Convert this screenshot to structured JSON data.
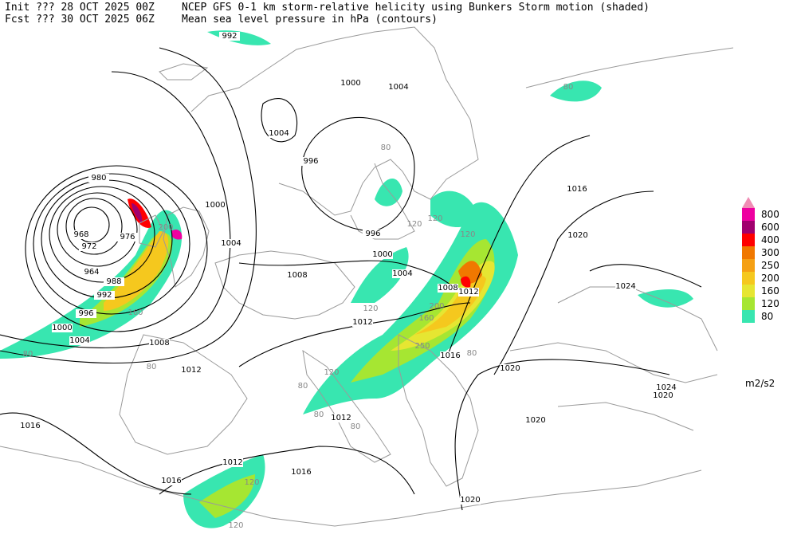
{
  "header": {
    "init": "Init  ??? 28 OCT 2025 00Z",
    "fcst": "Fcst ??? 30 OCT 2025 06Z",
    "title": "NCEP GFS 0-1 km storm-relative helicity using Bunkers Storm motion (shaded)",
    "subtitle": "Mean sea level pressure in hPa (contours)"
  },
  "legend": {
    "levels": [
      80,
      120,
      160,
      200,
      250,
      300,
      400,
      600,
      800
    ],
    "colors": [
      "#38e6b0",
      "#a6e632",
      "#e6e632",
      "#f5c81e",
      "#f5a014",
      "#f07800",
      "#ff0000",
      "#a0006e",
      "#ee00a0"
    ],
    "extend_color": "#f08cb4",
    "unit": "m2/s2"
  },
  "isobar_labels": [
    992,
    1004,
    1000,
    1004,
    996,
    980,
    976,
    968,
    972,
    964,
    988,
    992,
    996,
    1000,
    1004,
    1000,
    1004,
    1008,
    996,
    1000,
    1004,
    1008,
    1012,
    1012,
    1008,
    1012,
    1016,
    1020,
    1016,
    1020,
    1024,
    1024,
    1020,
    1020,
    1012,
    1016,
    1012,
    1016,
    1016,
    1020
  ],
  "helicity_labels": [
    80,
    80,
    120,
    120,
    120,
    200,
    160,
    80,
    120,
    250,
    200,
    160,
    80,
    120,
    80,
    80,
    120,
    120,
    80,
    80
  ]
}
